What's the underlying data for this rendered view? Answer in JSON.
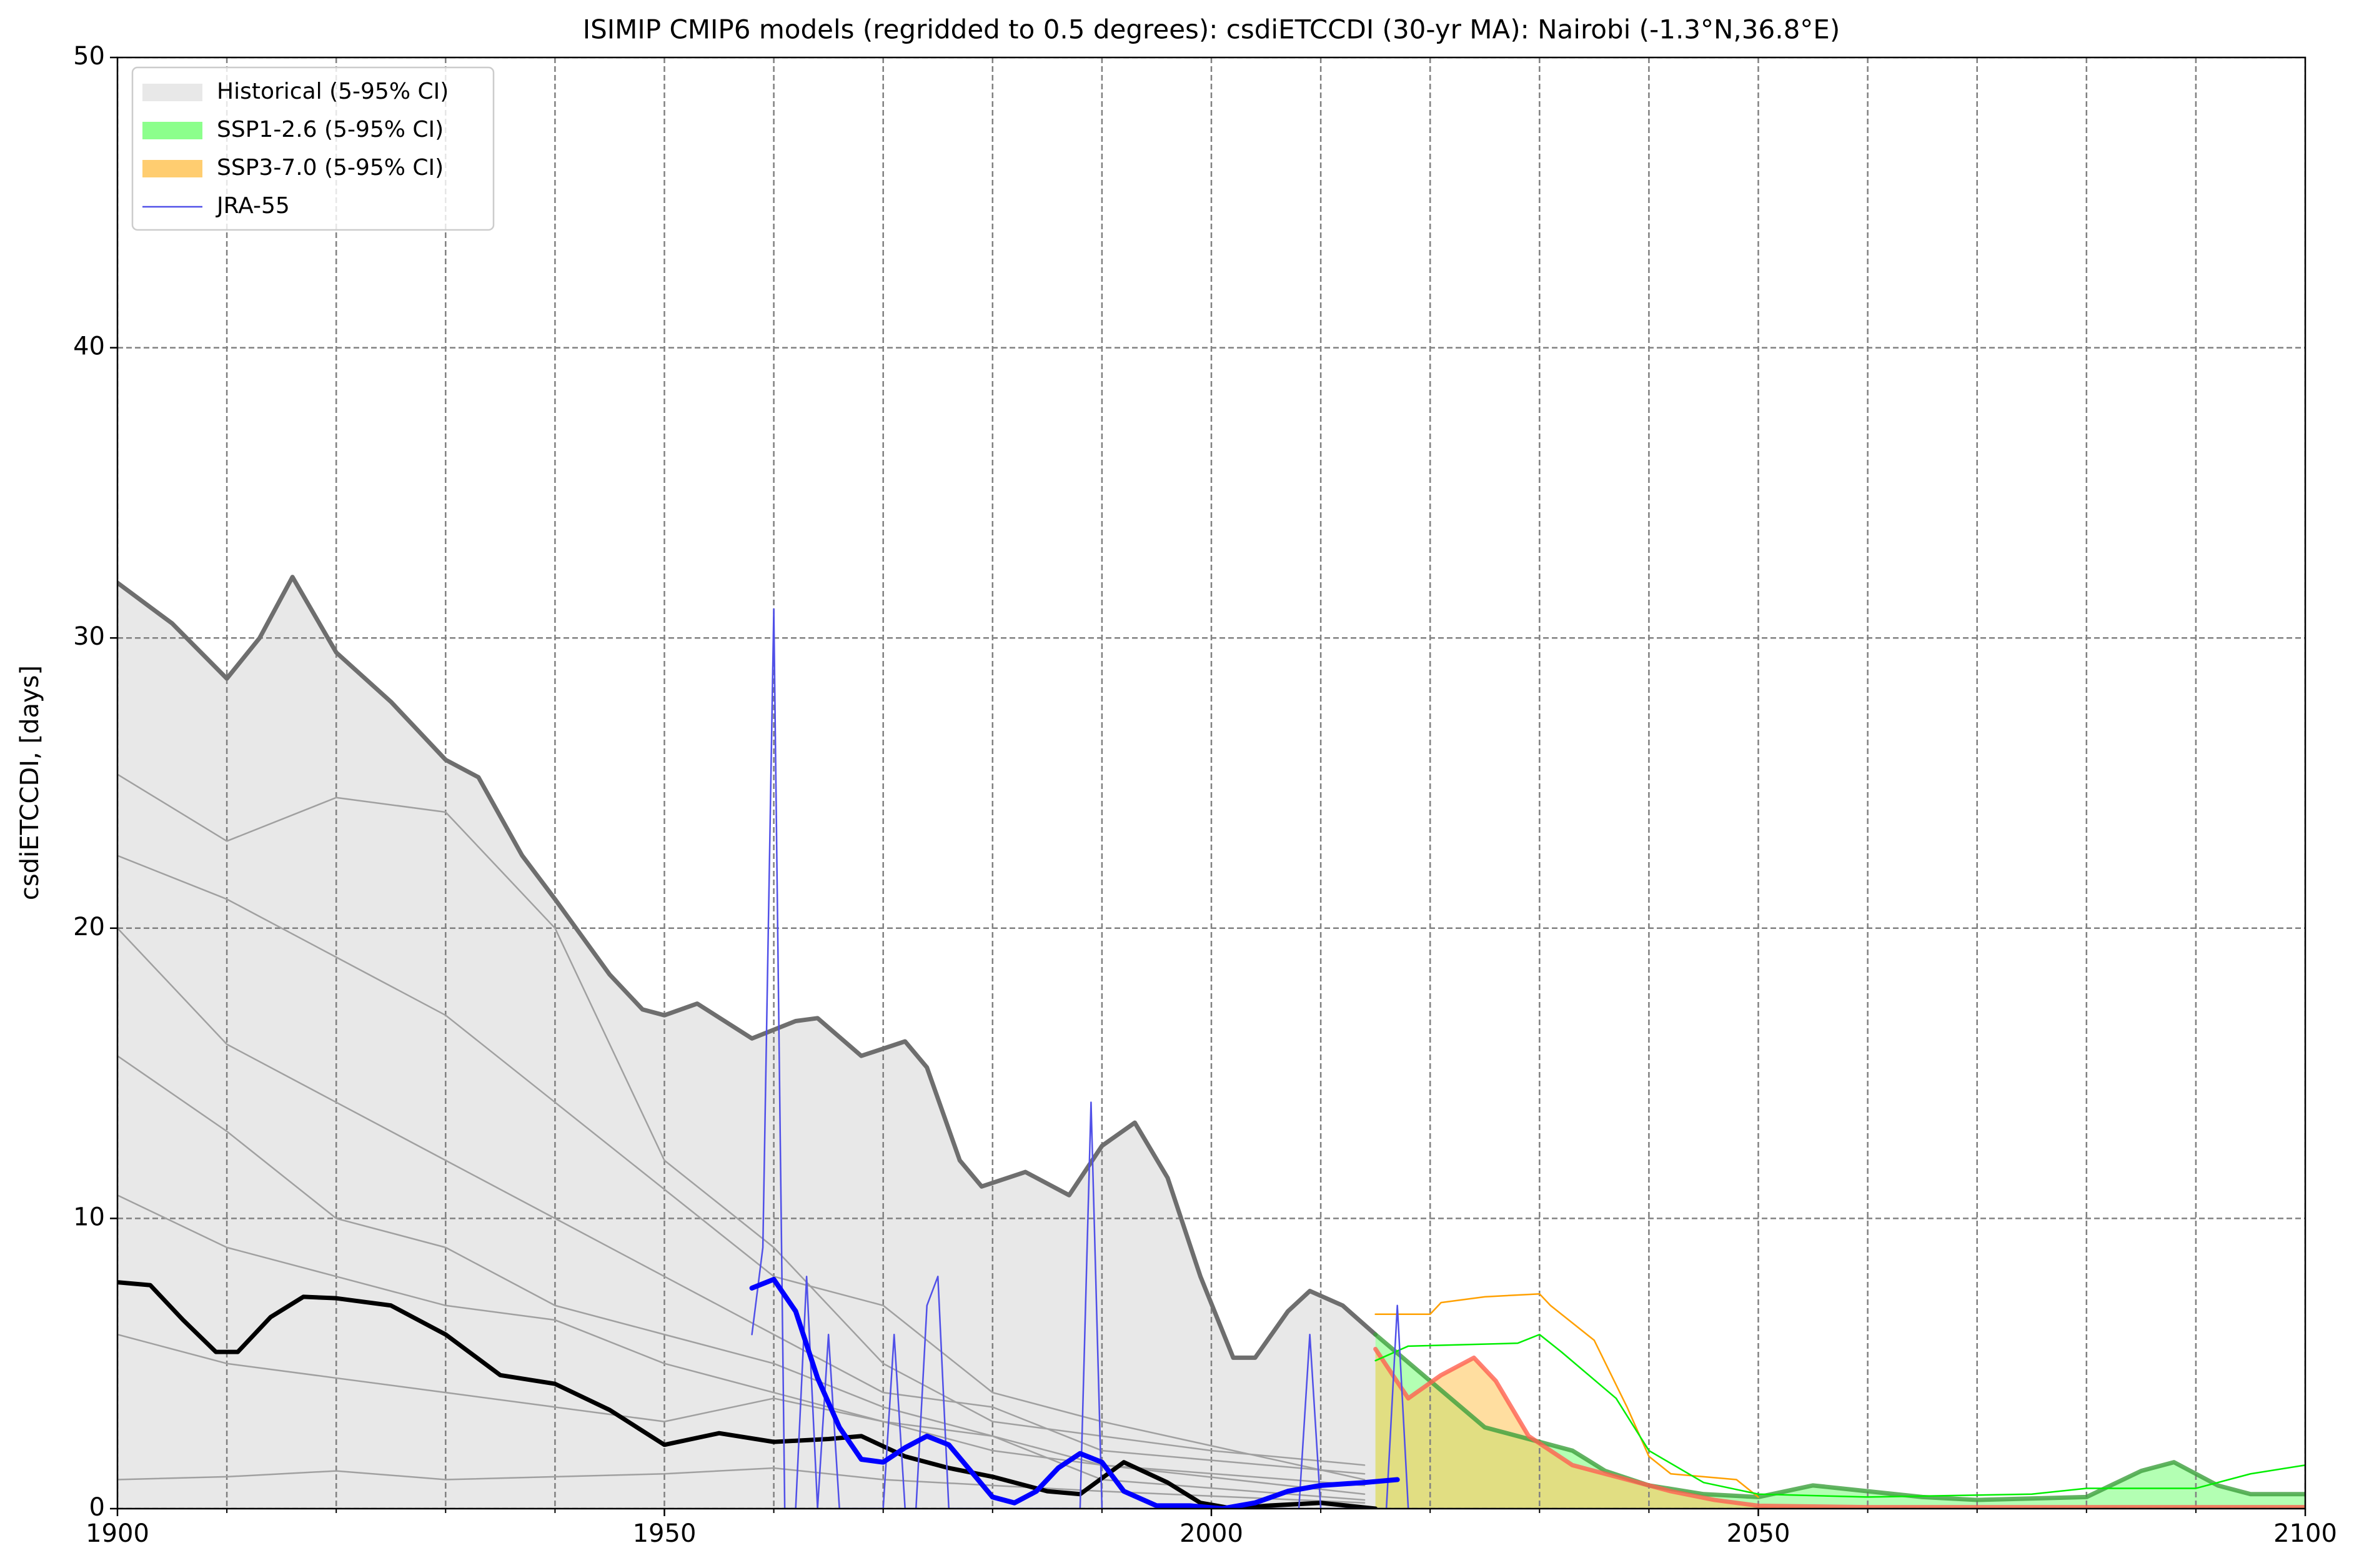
{
  "chart_data": {
    "type": "line",
    "title": "ISIMIP CMIP6 models (regridded to 0.5 degrees): csdiETCCDI (30-yr MA): Nairobi (-1.3°N,36.8°E)",
    "ylabel": "csdiETCCDI, [days]",
    "xlim": [
      1900,
      2100
    ],
    "ylim": [
      0,
      50
    ],
    "xticks": [
      1900,
      1950,
      2000,
      2050,
      2100
    ],
    "xminor": [
      1910,
      1920,
      1930,
      1940,
      1960,
      1970,
      1980,
      1990,
      2010,
      2020,
      2030,
      2040,
      2060,
      2070,
      2080,
      2090
    ],
    "yticks": [
      0,
      10,
      20,
      30,
      40,
      50
    ],
    "grid": true,
    "legend": "upper left",
    "series": [
      {
        "color": "#a0a0a0",
        "width": 2.5,
        "x": [
          1900,
          1910,
          1920,
          1930,
          1940,
          1950,
          1960,
          1970,
          1980,
          1990,
          2000,
          2014
        ],
        "values": [
          25.3,
          23,
          24.5,
          24,
          20,
          12,
          9,
          5,
          3,
          2.5,
          2,
          1.5
        ]
      },
      {
        "color": "#a0a0a0",
        "width": 2.5,
        "x": [
          1900,
          1910,
          1920,
          1930,
          1940,
          1950,
          1960,
          1970,
          1980,
          1990,
          2014
        ],
        "values": [
          22.5,
          21,
          19,
          17,
          14,
          11,
          8,
          7,
          4,
          3,
          1
        ]
      },
      {
        "color": "#a0a0a0",
        "width": 2.5,
        "x": [
          1900,
          1910,
          1920,
          1930,
          1940,
          1950,
          1960,
          1970,
          1980,
          1990,
          2014
        ],
        "values": [
          20,
          16,
          14,
          12,
          10,
          8,
          6,
          4,
          3.5,
          2,
          1.2
        ]
      },
      {
        "color": "#a0a0a0",
        "width": 2.5,
        "x": [
          1900,
          1910,
          1920,
          1930,
          1940,
          1950,
          1960,
          1970,
          1980,
          1990,
          2014
        ],
        "values": [
          15.6,
          13,
          10,
          9,
          7,
          6,
          5,
          3.5,
          2.5,
          1.5,
          0.8
        ]
      },
      {
        "color": "#a0a0a0",
        "width": 2.5,
        "x": [
          1900,
          1910,
          1920,
          1930,
          1940,
          1950,
          1960,
          1970,
          1980,
          1990,
          2014
        ],
        "values": [
          10.8,
          9,
          8,
          7,
          6.5,
          5,
          4,
          3,
          2,
          1.5,
          0.5
        ]
      },
      {
        "color": "#a0a0a0",
        "width": 2.5,
        "x": [
          1900,
          1910,
          1920,
          1930,
          1940,
          1950,
          1960,
          1970,
          1980,
          1990,
          2014
        ],
        "values": [
          6,
          5,
          4.5,
          4,
          3.5,
          3,
          3.8,
          3,
          2.5,
          1,
          0.3
        ]
      },
      {
        "color": "#a0a0a0",
        "width": 2.5,
        "x": [
          1900,
          1910,
          1920,
          1930,
          1940,
          1950,
          1960,
          1970,
          1980,
          1990,
          2014
        ],
        "values": [
          1,
          1.1,
          1.3,
          1,
          1.1,
          1.2,
          1.4,
          1,
          0.8,
          0.6,
          0.2
        ]
      },
      {
        "name": "Historical (5-95% CI)",
        "fill": "#e8e8e8",
        "color": "#6e6e6e",
        "width": 7,
        "x": [
          1900,
          1905,
          1910,
          1913,
          1916,
          1920,
          1925,
          1930,
          1933,
          1937,
          1940,
          1945,
          1948,
          1950,
          1953,
          1958,
          1962,
          1964,
          1968,
          1972,
          1974,
          1977,
          1979,
          1983,
          1987,
          1990,
          1993,
          1996,
          1999,
          2002,
          2004,
          2007,
          2009,
          2012,
          2015
        ],
        "values": [
          31.9,
          30.5,
          28.6,
          30,
          32.1,
          29.5,
          27.8,
          25.8,
          25.2,
          22.5,
          21,
          18.4,
          17.2,
          17,
          17.4,
          16.2,
          16.8,
          16.9,
          15.6,
          16.1,
          15.2,
          12,
          11.1,
          11.6,
          10.8,
          12.5,
          13.3,
          11.4,
          8,
          5.2,
          5.2,
          6.8,
          7.5,
          7,
          6
        ]
      },
      {
        "name": "SSP1-2.6 (5-95% CI)",
        "fill": "#80ff80",
        "color": "#3c9f3c",
        "width": 7,
        "x": [
          2015,
          2020,
          2025,
          2030,
          2033,
          2036,
          2040,
          2045,
          2050,
          2055,
          2060,
          2065,
          2070,
          2080,
          2085,
          2088,
          2092,
          2095,
          2100
        ],
        "values": [
          6,
          4.4,
          2.8,
          2.3,
          2,
          1.3,
          0.8,
          0.5,
          0.4,
          0.8,
          0.6,
          0.4,
          0.3,
          0.4,
          1.3,
          1.6,
          0.8,
          0.5,
          0.5
        ]
      },
      {
        "name": "SSP3-7.0 (5-95% CI)",
        "fill": "#ffc860",
        "color": "#ff6050",
        "width": 7,
        "x": [
          2015,
          2018,
          2021,
          2024,
          2026,
          2029,
          2033,
          2038,
          2042,
          2046,
          2050,
          2060,
          2100
        ],
        "values": [
          5.5,
          3.8,
          4.6,
          5.2,
          4.4,
          2.5,
          1.5,
          1,
          0.6,
          0.3,
          0.1,
          0.05,
          0.05
        ]
      },
      {
        "color": "#ffa000",
        "width": 2.5,
        "x": [
          2015,
          2020,
          2021,
          2025,
          2030,
          2031,
          2035,
          2038,
          2040,
          2042,
          2048,
          2050
        ],
        "values": [
          6.7,
          6.7,
          7.1,
          7.3,
          7.4,
          7,
          5.8,
          3.5,
          1.8,
          1.2,
          1,
          0.4
        ]
      },
      {
        "color": "#00ee00",
        "width": 2.5,
        "x": [
          2015,
          2018,
          2028,
          2030,
          2032,
          2037,
          2040,
          2045,
          2050,
          2060,
          2075,
          2080,
          2090,
          2095,
          2100
        ],
        "values": [
          5.1,
          5.6,
          5.7,
          6,
          5.4,
          3.8,
          2,
          0.9,
          0.5,
          0.4,
          0.5,
          0.7,
          0.7,
          1.2,
          1.5
        ]
      },
      {
        "color": "#000000",
        "width": 7,
        "x": [
          1900,
          1903,
          1906,
          1909,
          1911,
          1914,
          1917,
          1920,
          1925,
          1930,
          1935,
          1940,
          1945,
          1950,
          1955,
          1960,
          1965,
          1968,
          1972,
          1976,
          1980,
          1985,
          1988,
          1992,
          1996,
          1999,
          2002,
          2005,
          2010,
          2015
        ],
        "values": [
          7.8,
          7.7,
          6.5,
          5.4,
          5.4,
          6.6,
          7.3,
          7.25,
          7,
          6,
          4.6,
          4.3,
          3.4,
          2.2,
          2.6,
          2.3,
          2.4,
          2.5,
          1.8,
          1.4,
          1.1,
          0.6,
          0.5,
          1.6,
          0.9,
          0.2,
          0,
          0.1,
          0.2,
          0
        ]
      },
      {
        "name": "JRA-55",
        "color": "#5050e8",
        "width": 2.5,
        "x": [
          1958,
          1959,
          1960,
          1961,
          1962,
          1963,
          1964,
          1965,
          1966,
          1967,
          1968,
          1969,
          1970,
          1971,
          1972,
          1973,
          1974,
          1975,
          1976,
          1977,
          1978,
          1979,
          1980,
          1981,
          1982,
          1983,
          1984,
          1985,
          1986,
          1987,
          1988,
          1989,
          1990,
          1991,
          1992,
          1993,
          1994,
          1995,
          1996,
          1997,
          1998,
          1999,
          2000,
          2001,
          2002,
          2003,
          2004,
          2005,
          2006,
          2007,
          2008,
          2009,
          2010,
          2011,
          2012,
          2013,
          2014,
          2015,
          2016,
          2017,
          2018
        ],
        "values": [
          6,
          9,
          31,
          0,
          0,
          8,
          0,
          6,
          0,
          0,
          0,
          0,
          0,
          6,
          0,
          0,
          7,
          8,
          0,
          0,
          0,
          0,
          0,
          0,
          0,
          0,
          0,
          0,
          0,
          0,
          0,
          14,
          0,
          0,
          0,
          0,
          0,
          0,
          0,
          0,
          0,
          0,
          0,
          0,
          0,
          0,
          0,
          0,
          0,
          0,
          0,
          6,
          0,
          0,
          0,
          0,
          0,
          0,
          0,
          7,
          0
        ]
      },
      {
        "color": "#0000ff",
        "width": 8,
        "x": [
          1958,
          1960,
          1962,
          1964,
          1966,
          1968,
          1970,
          1972,
          1974,
          1976,
          1978,
          1980,
          1982,
          1984,
          1986,
          1988,
          1990,
          1992,
          1995,
          1998,
          2001,
          2004,
          2007,
          2010,
          2014,
          2017
        ],
        "values": [
          7.6,
          7.9,
          6.8,
          4.5,
          2.8,
          1.7,
          1.6,
          2.1,
          2.5,
          2.2,
          1.3,
          0.4,
          0.2,
          0.6,
          1.4,
          1.9,
          1.6,
          0.6,
          0.1,
          0.1,
          0,
          0.2,
          0.6,
          0.8,
          0.9,
          1
        ]
      }
    ]
  }
}
